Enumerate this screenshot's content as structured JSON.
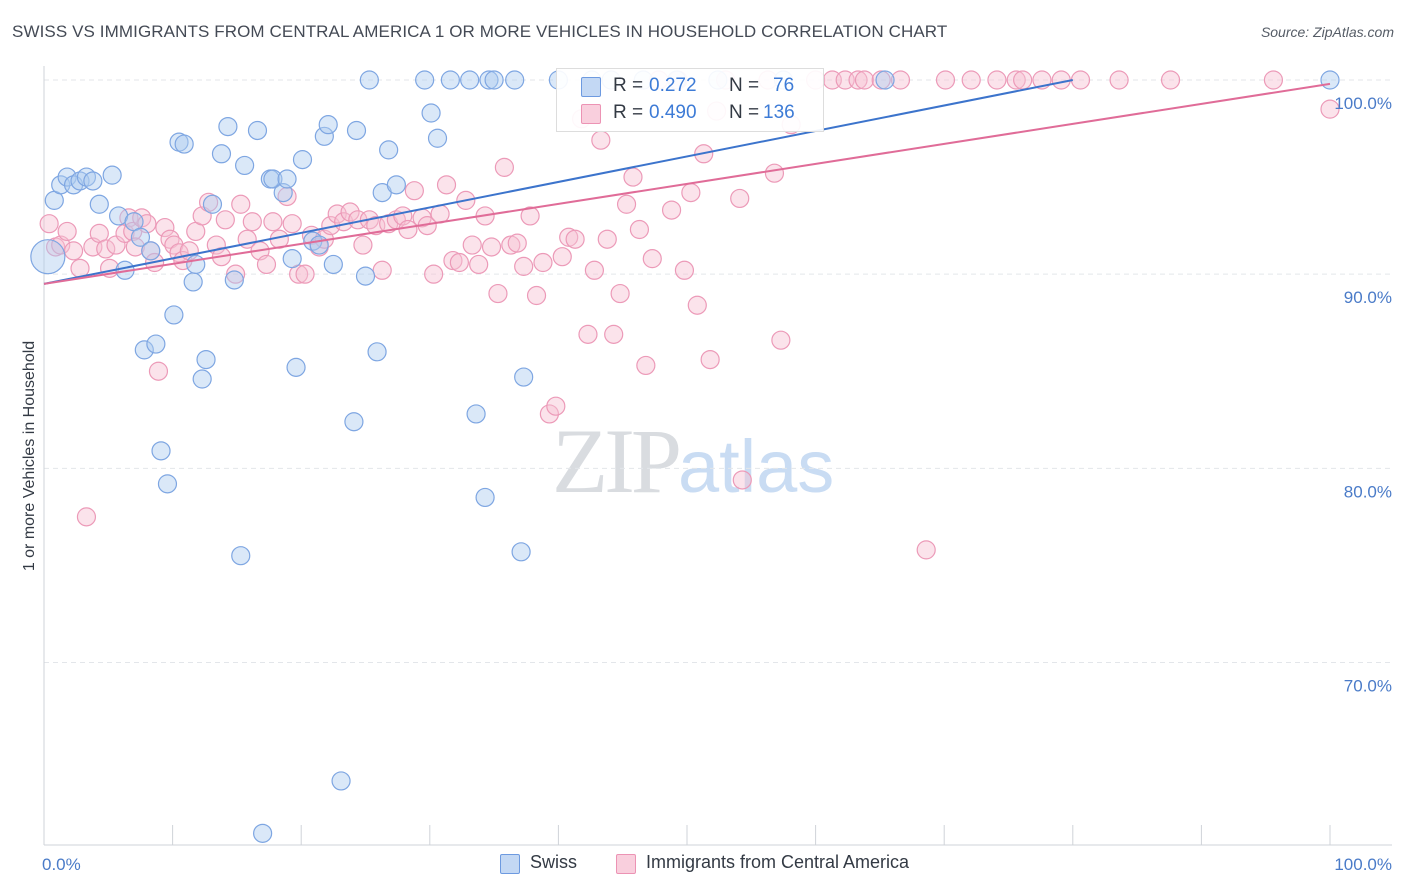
{
  "title": "SWISS VS IMMIGRANTS FROM CENTRAL AMERICA 1 OR MORE VEHICLES IN HOUSEHOLD CORRELATION CHART",
  "source": "Source: ZipAtlas.com",
  "watermark": {
    "zip": "ZIP",
    "atlas": "atlas"
  },
  "legend_box": {
    "swiss": {
      "r_label": "R =",
      "r_value": "0.272",
      "n_label": "N =",
      "n_value": "76"
    },
    "immigrants": {
      "r_label": "R =",
      "r_value": "0.490",
      "n_label": "N =",
      "n_value": "136"
    }
  },
  "bottom_legend": {
    "swiss": "Swiss",
    "immigrants": "Immigrants from Central America"
  },
  "colors": {
    "swiss_fill": "#aecbf0",
    "swiss_line": "#3c74cc",
    "imm_fill": "#f7c0d2",
    "imm_line": "#e06c98",
    "axis_label": "#4a7bc8",
    "grid": "#e3e6ea"
  },
  "chart_data": {
    "type": "scatter",
    "title": "SWISS VS IMMIGRANTS FROM CENTRAL AMERICA 1 OR MORE VEHICLES IN HOUSEHOLD CORRELATION CHART",
    "xlabel": "",
    "ylabel": "1 or more Vehicles in Household",
    "xlim": [
      0,
      100
    ],
    "ylim": [
      60.0,
      100.9
    ],
    "x_tick_labels": [
      "0.0%",
      "100.0%"
    ],
    "y_ticks": [
      70,
      80,
      90,
      100
    ],
    "y_tick_labels": [
      "70.0%",
      "80.0%",
      "90.0%",
      "100.0%"
    ],
    "grid": true,
    "legend_position": "top-center",
    "series": [
      {
        "name": "Swiss",
        "R": 0.272,
        "N": 76,
        "trend": {
          "x": [
            0,
            80
          ],
          "y": [
            89.5,
            100.0
          ]
        },
        "points": [
          [
            0.3,
            90.9
          ],
          [
            0.8,
            93.8
          ],
          [
            1.3,
            94.6
          ],
          [
            1.8,
            95.0
          ],
          [
            2.3,
            94.6
          ],
          [
            2.8,
            94.8
          ],
          [
            3.3,
            95.0
          ],
          [
            3.8,
            94.8
          ],
          [
            4.3,
            93.6
          ],
          [
            5.3,
            95.1
          ],
          [
            5.8,
            93.0
          ],
          [
            6.3,
            90.2
          ],
          [
            7.0,
            92.7
          ],
          [
            7.5,
            91.9
          ],
          [
            7.8,
            86.1
          ],
          [
            8.3,
            91.2
          ],
          [
            8.7,
            86.4
          ],
          [
            9.1,
            80.9
          ],
          [
            9.6,
            79.2
          ],
          [
            10.1,
            87.9
          ],
          [
            10.5,
            96.8
          ],
          [
            10.9,
            96.7
          ],
          [
            11.6,
            89.6
          ],
          [
            11.8,
            90.5
          ],
          [
            12.3,
            84.6
          ],
          [
            12.6,
            85.6
          ],
          [
            13.1,
            93.6
          ],
          [
            13.8,
            96.2
          ],
          [
            14.3,
            97.6
          ],
          [
            14.8,
            89.7
          ],
          [
            15.3,
            75.5
          ],
          [
            15.6,
            95.6
          ],
          [
            16.6,
            97.4
          ],
          [
            17.0,
            61.2
          ],
          [
            17.6,
            94.9
          ],
          [
            17.8,
            94.9
          ],
          [
            18.6,
            94.2
          ],
          [
            18.9,
            94.9
          ],
          [
            19.3,
            90.8
          ],
          [
            19.6,
            85.2
          ],
          [
            20.1,
            95.9
          ],
          [
            20.9,
            91.7
          ],
          [
            21.4,
            91.5
          ],
          [
            21.8,
            97.1
          ],
          [
            22.1,
            97.7
          ],
          [
            22.5,
            90.5
          ],
          [
            23.1,
            63.9
          ],
          [
            24.1,
            82.4
          ],
          [
            24.3,
            97.4
          ],
          [
            25.0,
            89.9
          ],
          [
            25.3,
            100.0
          ],
          [
            25.9,
            86.0
          ],
          [
            26.3,
            94.2
          ],
          [
            26.8,
            96.4
          ],
          [
            27.4,
            94.6
          ],
          [
            29.6,
            100.0
          ],
          [
            30.1,
            98.3
          ],
          [
            30.6,
            97.0
          ],
          [
            31.6,
            100.0
          ],
          [
            33.1,
            100.0
          ],
          [
            33.6,
            82.8
          ],
          [
            34.3,
            78.5
          ],
          [
            34.6,
            100.0
          ],
          [
            35.0,
            100.0
          ],
          [
            36.6,
            100.0
          ],
          [
            37.1,
            75.7
          ],
          [
            37.3,
            84.7
          ],
          [
            40.0,
            100.0
          ],
          [
            42.6,
            100.0
          ],
          [
            44.1,
            100.0
          ],
          [
            46.6,
            100.0
          ],
          [
            49.2,
            100.0
          ],
          [
            52.4,
            100.0
          ],
          [
            57.5,
            100.0
          ],
          [
            65.4,
            100.0
          ],
          [
            100.0,
            100.0
          ]
        ]
      },
      {
        "name": "Immigrants from Central America",
        "R": 0.49,
        "N": 136,
        "trend": {
          "x": [
            0,
            100
          ],
          "y": [
            89.5,
            99.8
          ]
        },
        "points": [
          [
            0.4,
            92.6
          ],
          [
            0.9,
            91.4
          ],
          [
            1.3,
            91.5
          ],
          [
            1.8,
            92.2
          ],
          [
            2.3,
            91.2
          ],
          [
            2.8,
            90.3
          ],
          [
            3.3,
            77.5
          ],
          [
            3.8,
            91.4
          ],
          [
            4.3,
            92.1
          ],
          [
            4.8,
            91.3
          ],
          [
            5.1,
            90.3
          ],
          [
            5.6,
            91.5
          ],
          [
            6.3,
            92.1
          ],
          [
            6.6,
            92.9
          ],
          [
            6.9,
            92.2
          ],
          [
            7.1,
            91.4
          ],
          [
            7.6,
            92.9
          ],
          [
            8.0,
            92.6
          ],
          [
            8.3,
            91.2
          ],
          [
            8.6,
            90.6
          ],
          [
            8.9,
            85.0
          ],
          [
            9.4,
            92.4
          ],
          [
            9.8,
            91.8
          ],
          [
            10.1,
            91.5
          ],
          [
            10.5,
            91.1
          ],
          [
            10.8,
            90.7
          ],
          [
            11.3,
            91.2
          ],
          [
            11.8,
            92.2
          ],
          [
            12.3,
            93.0
          ],
          [
            12.8,
            93.7
          ],
          [
            13.4,
            91.5
          ],
          [
            13.8,
            90.9
          ],
          [
            14.1,
            92.8
          ],
          [
            14.9,
            90.0
          ],
          [
            15.3,
            93.6
          ],
          [
            15.8,
            91.8
          ],
          [
            16.2,
            92.7
          ],
          [
            16.8,
            91.2
          ],
          [
            17.3,
            90.5
          ],
          [
            17.8,
            92.7
          ],
          [
            18.3,
            91.8
          ],
          [
            18.9,
            94.0
          ],
          [
            19.3,
            92.6
          ],
          [
            19.8,
            90.0
          ],
          [
            20.3,
            90.0
          ],
          [
            20.8,
            92.0
          ],
          [
            21.4,
            91.4
          ],
          [
            21.8,
            91.8
          ],
          [
            22.3,
            92.5
          ],
          [
            22.8,
            93.1
          ],
          [
            23.3,
            92.7
          ],
          [
            23.8,
            93.2
          ],
          [
            24.4,
            92.8
          ],
          [
            24.8,
            91.5
          ],
          [
            25.3,
            92.8
          ],
          [
            25.8,
            92.5
          ],
          [
            26.3,
            90.2
          ],
          [
            26.8,
            92.6
          ],
          [
            27.4,
            92.8
          ],
          [
            27.9,
            93.0
          ],
          [
            28.3,
            92.3
          ],
          [
            28.8,
            94.3
          ],
          [
            29.4,
            92.9
          ],
          [
            29.8,
            92.5
          ],
          [
            30.3,
            90.0
          ],
          [
            30.8,
            93.1
          ],
          [
            31.3,
            94.6
          ],
          [
            31.8,
            90.7
          ],
          [
            32.3,
            90.6
          ],
          [
            32.8,
            93.8
          ],
          [
            33.3,
            91.5
          ],
          [
            33.8,
            90.5
          ],
          [
            34.3,
            93.0
          ],
          [
            34.8,
            91.4
          ],
          [
            35.3,
            89.0
          ],
          [
            35.8,
            95.5
          ],
          [
            36.3,
            91.5
          ],
          [
            36.8,
            91.6
          ],
          [
            37.3,
            90.4
          ],
          [
            37.8,
            93.0
          ],
          [
            38.3,
            88.9
          ],
          [
            38.8,
            90.6
          ],
          [
            39.3,
            82.8
          ],
          [
            39.8,
            83.2
          ],
          [
            40.3,
            90.9
          ],
          [
            40.8,
            91.9
          ],
          [
            41.3,
            91.8
          ],
          [
            41.8,
            98.0
          ],
          [
            42.3,
            86.9
          ],
          [
            42.8,
            90.2
          ],
          [
            43.3,
            96.9
          ],
          [
            43.8,
            91.8
          ],
          [
            44.3,
            86.9
          ],
          [
            44.8,
            89.0
          ],
          [
            45.3,
            93.6
          ],
          [
            45.8,
            95.0
          ],
          [
            46.3,
            92.3
          ],
          [
            46.8,
            85.3
          ],
          [
            47.3,
            90.8
          ],
          [
            47.8,
            100.0
          ],
          [
            48.8,
            93.3
          ],
          [
            49.3,
            100.0
          ],
          [
            49.8,
            90.2
          ],
          [
            50.3,
            94.2
          ],
          [
            50.8,
            88.4
          ],
          [
            51.3,
            96.2
          ],
          [
            51.8,
            85.6
          ],
          [
            52.3,
            98.4
          ],
          [
            53.0,
            100.0
          ],
          [
            54.1,
            93.9
          ],
          [
            54.3,
            79.4
          ],
          [
            56.3,
            100.0
          ],
          [
            56.8,
            95.2
          ],
          [
            57.3,
            86.6
          ],
          [
            58.1,
            97.7
          ],
          [
            60.0,
            100.0
          ],
          [
            61.3,
            100.0
          ],
          [
            62.3,
            100.0
          ],
          [
            63.3,
            100.0
          ],
          [
            63.8,
            100.0
          ],
          [
            65.1,
            100.0
          ],
          [
            66.6,
            100.0
          ],
          [
            68.6,
            75.8
          ],
          [
            70.1,
            100.0
          ],
          [
            72.1,
            100.0
          ],
          [
            74.1,
            100.0
          ],
          [
            75.6,
            100.0
          ],
          [
            76.1,
            100.0
          ],
          [
            77.6,
            100.0
          ],
          [
            79.1,
            100.0
          ],
          [
            80.6,
            100.0
          ],
          [
            83.6,
            100.0
          ],
          [
            87.6,
            100.0
          ],
          [
            95.6,
            100.0
          ],
          [
            100.0,
            98.5
          ]
        ]
      }
    ]
  }
}
